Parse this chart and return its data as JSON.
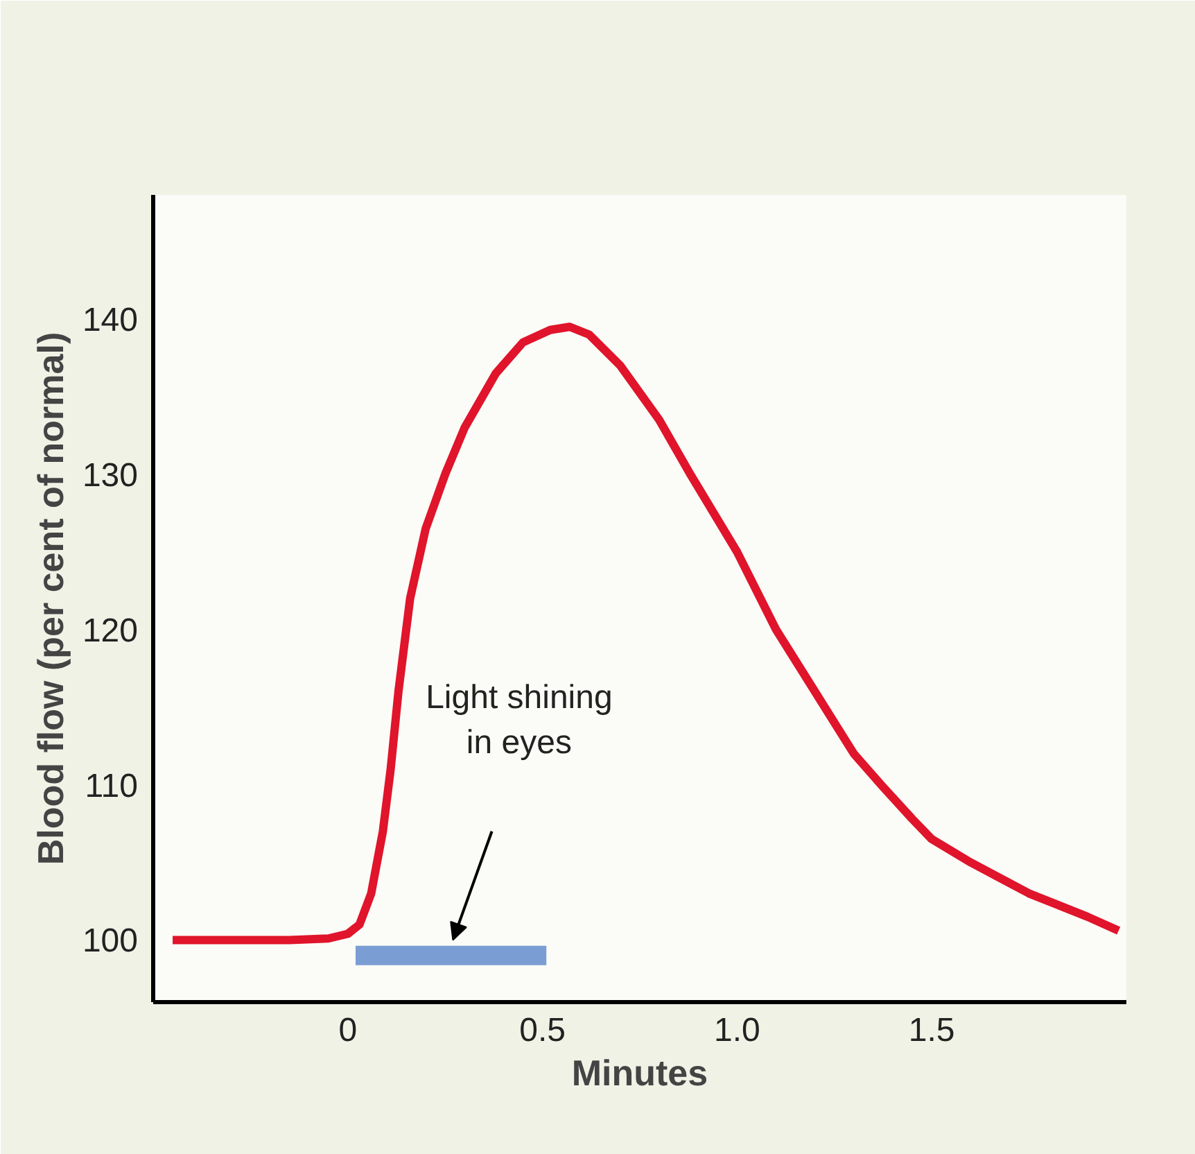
{
  "chart_data": {
    "type": "line",
    "xlabel": "Minutes",
    "ylabel": "Blood flow (per cent of normal)",
    "xlim": [
      -0.5,
      2.0
    ],
    "ylim": [
      96,
      148
    ],
    "xticks": [
      0,
      0.5,
      {
        "value": 1.0,
        "label": "1.0"
      },
      1.5
    ],
    "yticks": [
      100,
      110,
      120,
      130,
      140
    ],
    "grid": false,
    "line_style": "solid",
    "marker": "none",
    "series": [
      {
        "color": "#e0142b",
        "x": [
          -0.45,
          -0.3,
          -0.15,
          -0.05,
          0,
          0.03,
          0.06,
          0.09,
          0.11,
          0.13,
          0.16,
          0.2,
          0.25,
          0.3,
          0.38,
          0.45,
          0.52,
          0.57,
          0.62,
          0.7,
          0.8,
          0.88,
          1.0,
          1.1,
          1.2,
          1.3,
          1.37,
          1.45,
          1.5,
          1.6,
          1.75,
          1.9,
          1.98
        ],
        "values": [
          100,
          100,
          100,
          100.1,
          100.4,
          101,
          103,
          107,
          111,
          116,
          122,
          126.5,
          130,
          133,
          136.5,
          138.5,
          139.3,
          139.5,
          139,
          137,
          133.5,
          130,
          125,
          120,
          116,
          112,
          110,
          107.8,
          106.5,
          105,
          103,
          101.5,
          100.6
        ]
      },
      {
        "type": "line",
        "color": "#7a9dd4",
        "x": [
          0.02,
          0.51
        ],
        "values": [
          99,
          99
        ]
      }
    ],
    "annotations": [
      "Light shining\nin eyes"
    ]
  }
}
